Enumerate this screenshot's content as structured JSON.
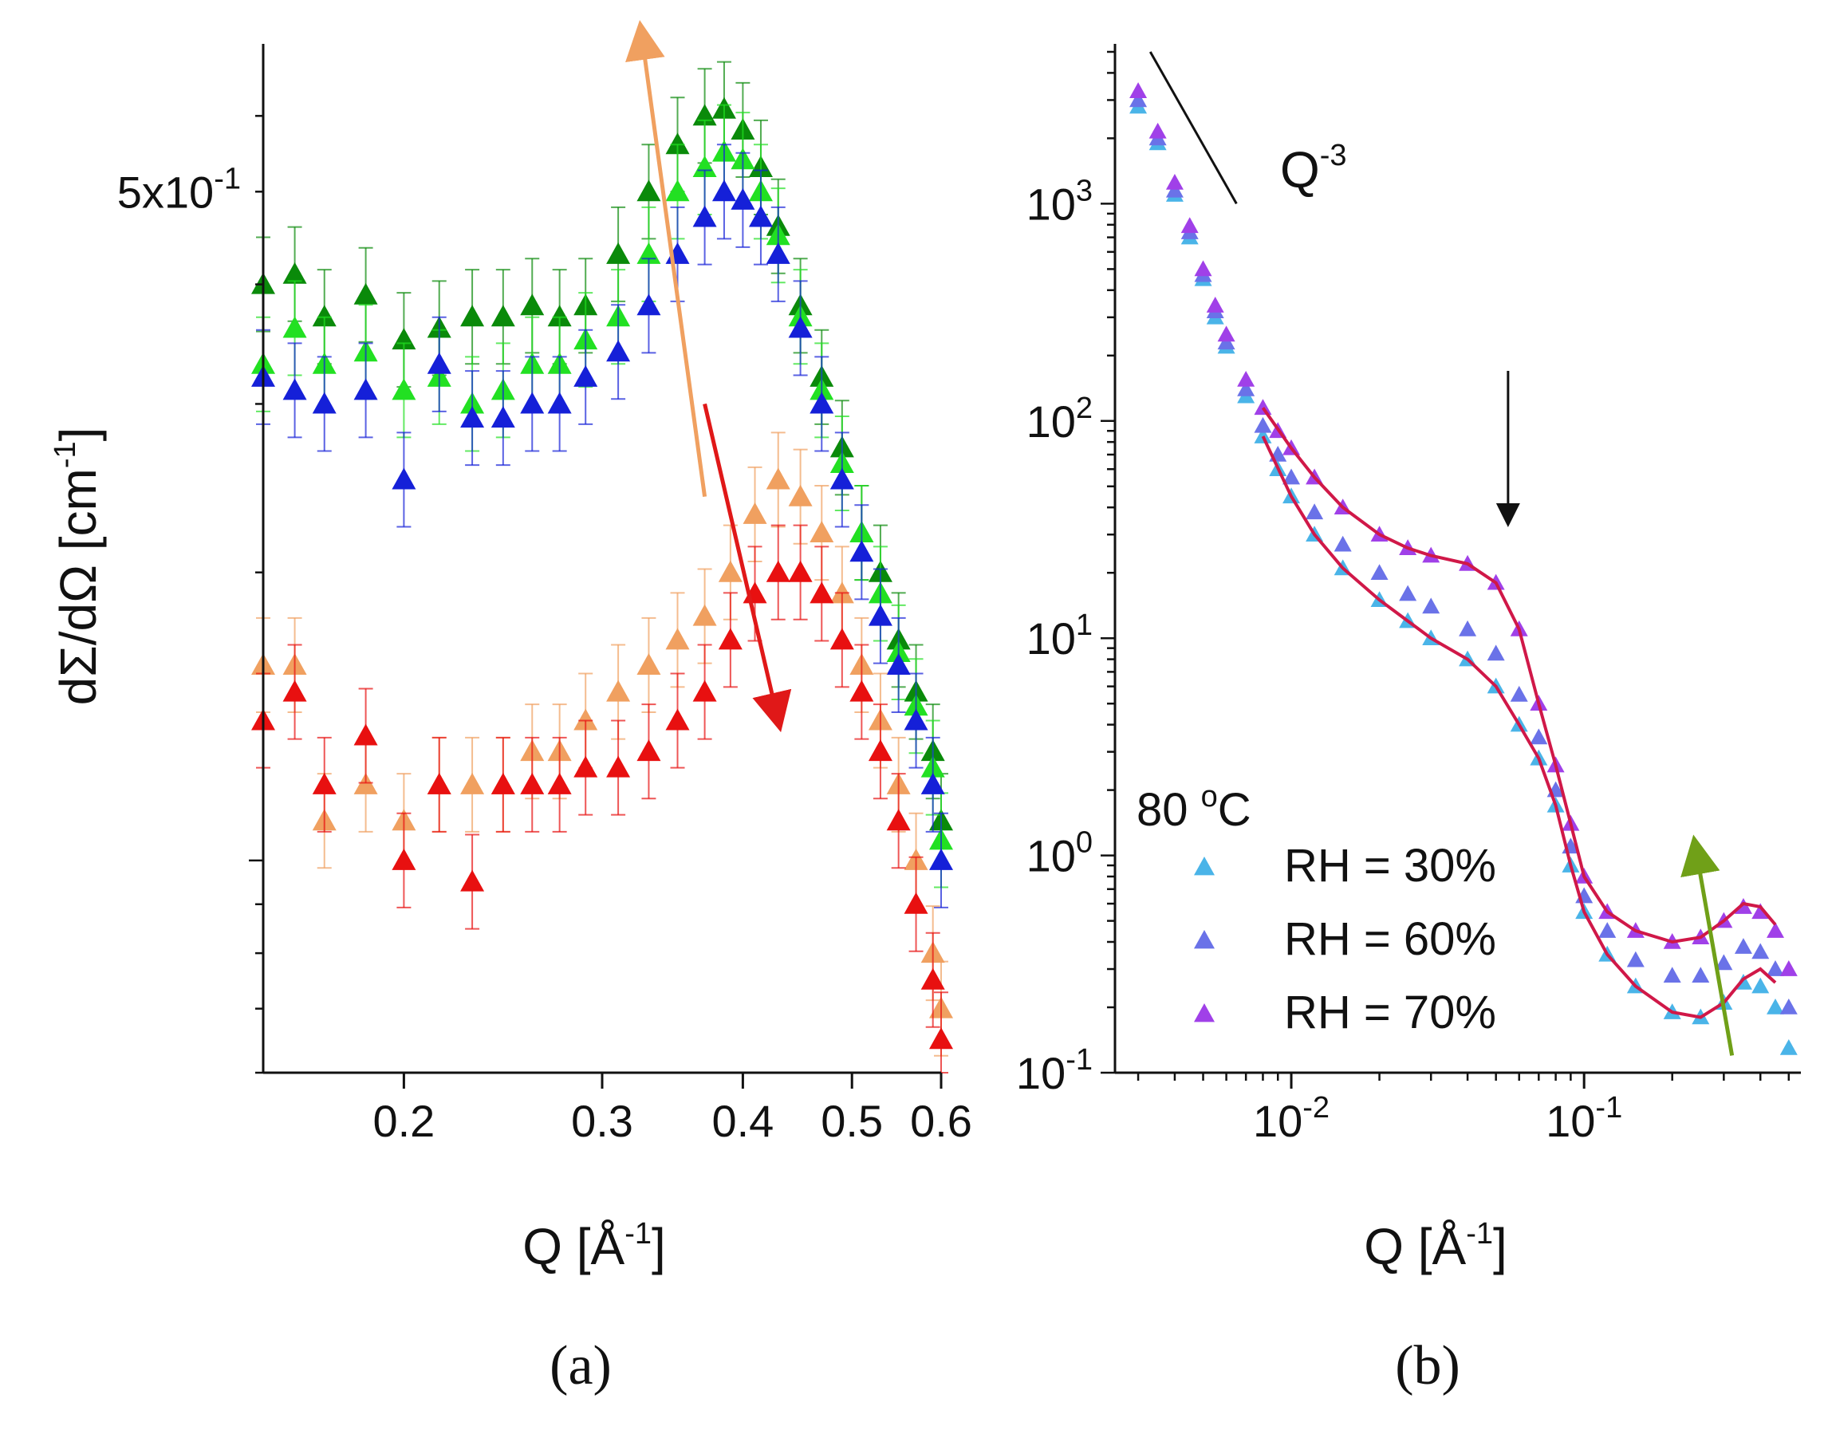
{
  "chart_data": [
    {
      "panel": "(a)",
      "type": "scatter",
      "xscale": "log",
      "yscale": "log",
      "xlim": [
        0.15,
        0.6
      ],
      "ylim": [
        0.06,
        0.7
      ],
      "xlabel": "Q [Å-1]",
      "xlabel_main": "Q [Å",
      "xlabel_sup": "-1",
      "xlabel_end": "]",
      "ylabel": "dΣ/dΩ [cm-1]",
      "ylabel_main": "dΣ/dΩ [cm",
      "ylabel_sup": "-1",
      "ylabel_end": "]",
      "xticks": [
        {
          "value": 0.2,
          "label": "0.2"
        },
        {
          "value": 0.3,
          "label": "0.3"
        },
        {
          "value": 0.4,
          "label": "0.4"
        },
        {
          "value": 0.5,
          "label": "0.5"
        },
        {
          "value": 0.6,
          "label": "0.6"
        }
      ],
      "yticks": [
        {
          "value": 0.5,
          "label_main": "5x10",
          "label_sup": "-1"
        }
      ],
      "series": [
        {
          "name": "dark green",
          "color": "#0a8a0a",
          "x": [
            0.15,
            0.16,
            0.17,
            0.185,
            0.2,
            0.215,
            0.23,
            0.245,
            0.26,
            0.275,
            0.29,
            0.31,
            0.33,
            0.35,
            0.37,
            0.385,
            0.4,
            0.415,
            0.43,
            0.45,
            0.47,
            0.49,
            0.51,
            0.53,
            0.55,
            0.57,
            0.59,
            0.6
          ],
          "y": [
            0.4,
            0.41,
            0.37,
            0.39,
            0.35,
            0.36,
            0.37,
            0.37,
            0.38,
            0.37,
            0.38,
            0.43,
            0.5,
            0.56,
            0.6,
            0.61,
            0.58,
            0.53,
            0.46,
            0.38,
            0.32,
            0.27,
            0.22,
            0.2,
            0.17,
            0.15,
            0.13,
            0.11
          ]
        },
        {
          "name": "light green",
          "color": "#22e022",
          "x": [
            0.15,
            0.16,
            0.17,
            0.185,
            0.2,
            0.215,
            0.23,
            0.245,
            0.26,
            0.275,
            0.29,
            0.31,
            0.33,
            0.35,
            0.37,
            0.385,
            0.4,
            0.415,
            0.43,
            0.45,
            0.47,
            0.49,
            0.51,
            0.53,
            0.55,
            0.57,
            0.59,
            0.6
          ],
          "y": [
            0.33,
            0.36,
            0.33,
            0.34,
            0.31,
            0.32,
            0.3,
            0.31,
            0.33,
            0.33,
            0.35,
            0.37,
            0.43,
            0.5,
            0.53,
            0.55,
            0.54,
            0.5,
            0.45,
            0.37,
            0.31,
            0.26,
            0.22,
            0.19,
            0.165,
            0.145,
            0.125,
            0.105
          ]
        },
        {
          "name": "blue",
          "color": "#1520d8",
          "x": [
            0.15,
            0.16,
            0.17,
            0.185,
            0.2,
            0.215,
            0.23,
            0.245,
            0.26,
            0.275,
            0.29,
            0.31,
            0.33,
            0.35,
            0.37,
            0.385,
            0.4,
            0.415,
            0.43,
            0.45,
            0.47,
            0.49,
            0.51,
            0.53,
            0.55,
            0.57,
            0.59,
            0.6
          ],
          "y": [
            0.32,
            0.31,
            0.3,
            0.31,
            0.25,
            0.33,
            0.29,
            0.29,
            0.3,
            0.3,
            0.32,
            0.34,
            0.38,
            0.43,
            0.47,
            0.5,
            0.49,
            0.47,
            0.43,
            0.36,
            0.3,
            0.25,
            0.21,
            0.18,
            0.16,
            0.14,
            0.12,
            0.1
          ]
        },
        {
          "name": "light orange",
          "color": "#f0a060",
          "x": [
            0.15,
            0.16,
            0.17,
            0.185,
            0.2,
            0.215,
            0.23,
            0.245,
            0.26,
            0.275,
            0.29,
            0.31,
            0.33,
            0.35,
            0.37,
            0.39,
            0.41,
            0.43,
            0.45,
            0.47,
            0.49,
            0.51,
            0.53,
            0.55,
            0.57,
            0.59,
            0.6
          ],
          "y": [
            0.16,
            0.16,
            0.11,
            0.12,
            0.11,
            0.12,
            0.12,
            0.12,
            0.13,
            0.13,
            0.14,
            0.15,
            0.16,
            0.17,
            0.18,
            0.2,
            0.23,
            0.25,
            0.24,
            0.22,
            0.19,
            0.16,
            0.14,
            0.12,
            0.1,
            0.08,
            0.07
          ]
        },
        {
          "name": "red",
          "color": "#e81010",
          "x": [
            0.15,
            0.16,
            0.17,
            0.185,
            0.2,
            0.215,
            0.23,
            0.245,
            0.26,
            0.275,
            0.29,
            0.31,
            0.33,
            0.35,
            0.37,
            0.39,
            0.41,
            0.43,
            0.45,
            0.47,
            0.49,
            0.51,
            0.53,
            0.55,
            0.57,
            0.59,
            0.6
          ],
          "y": [
            0.14,
            0.15,
            0.12,
            0.135,
            0.1,
            0.12,
            0.095,
            0.12,
            0.12,
            0.12,
            0.125,
            0.125,
            0.13,
            0.14,
            0.15,
            0.17,
            0.19,
            0.2,
            0.2,
            0.19,
            0.17,
            0.15,
            0.13,
            0.11,
            0.09,
            0.075,
            0.065
          ]
        }
      ],
      "annotations": [
        {
          "name": "orange-arrow",
          "color": "#f0a060",
          "from": [
            0.365,
            0.28
          ],
          "to": [
            0.33,
            0.78
          ]
        },
        {
          "name": "red-arrow",
          "color": "#e01818",
          "from": [
            0.37,
            0.3
          ],
          "to": [
            0.43,
            0.14
          ]
        }
      ]
    },
    {
      "panel": "(b)",
      "type": "scatter",
      "xscale": "log",
      "yscale": "log",
      "xlim": [
        0.0025,
        0.55
      ],
      "ylim": [
        0.1,
        5000
      ],
      "xlabel": "Q [Å-1]",
      "xlabel_main": "Q [Å",
      "xlabel_sup": "-1",
      "xlabel_end": "]",
      "xticks": [
        {
          "value": 0.01,
          "label_main": "10",
          "label_sup": "-2"
        },
        {
          "value": 0.1,
          "label_main": "10",
          "label_sup": "-1"
        }
      ],
      "yticks": [
        {
          "value": 0.1,
          "label_main": "10",
          "label_sup": "-1"
        },
        {
          "value": 1,
          "label_main": "10",
          "label_sup": "0"
        },
        {
          "value": 10,
          "label_main": "10",
          "label_sup": "1"
        },
        {
          "value": 100,
          "label_main": "10",
          "label_sup": "2"
        },
        {
          "value": 1000,
          "label_main": "10",
          "label_sup": "3"
        }
      ],
      "legend_title_main": "80 ",
      "legend_title_sup": "o",
      "legend_title_end": "C",
      "slope_label_main": "Q",
      "slope_label_sup": "-3",
      "series": [
        {
          "name": "RH = 30%",
          "color": "#4ab4e8",
          "x": [
            0.003,
            0.0035,
            0.004,
            0.0045,
            0.005,
            0.0055,
            0.006,
            0.007,
            0.008,
            0.009,
            0.01,
            0.012,
            0.015,
            0.02,
            0.025,
            0.03,
            0.04,
            0.05,
            0.06,
            0.07,
            0.08,
            0.09,
            0.1,
            0.12,
            0.15,
            0.2,
            0.25,
            0.3,
            0.35,
            0.4,
            0.45,
            0.5
          ],
          "y": [
            2800,
            1900,
            1100,
            700,
            450,
            300,
            220,
            130,
            85,
            60,
            45,
            30,
            21,
            15,
            12,
            10,
            8,
            6,
            4,
            2.8,
            1.7,
            0.9,
            0.55,
            0.35,
            0.25,
            0.19,
            0.18,
            0.21,
            0.26,
            0.25,
            0.2,
            0.13
          ]
        },
        {
          "name": "RH = 60%",
          "color": "#6a72e8",
          "x": [
            0.003,
            0.0035,
            0.004,
            0.0045,
            0.005,
            0.0055,
            0.006,
            0.007,
            0.008,
            0.009,
            0.01,
            0.012,
            0.015,
            0.02,
            0.025,
            0.03,
            0.04,
            0.05,
            0.06,
            0.07,
            0.08,
            0.09,
            0.1,
            0.12,
            0.15,
            0.2,
            0.25,
            0.3,
            0.35,
            0.4,
            0.45,
            0.5
          ],
          "y": [
            3000,
            2000,
            1150,
            740,
            470,
            320,
            230,
            140,
            95,
            70,
            55,
            38,
            27,
            20,
            16,
            14,
            11,
            8.5,
            5.5,
            3.5,
            2,
            1.1,
            0.65,
            0.45,
            0.33,
            0.28,
            0.28,
            0.32,
            0.38,
            0.36,
            0.3,
            0.2
          ]
        },
        {
          "name": "RH = 70%",
          "color": "#a040e8",
          "x": [
            0.003,
            0.0035,
            0.004,
            0.0045,
            0.005,
            0.0055,
            0.006,
            0.007,
            0.008,
            0.009,
            0.01,
            0.012,
            0.015,
            0.02,
            0.025,
            0.03,
            0.04,
            0.05,
            0.06,
            0.07,
            0.08,
            0.09,
            0.1,
            0.12,
            0.15,
            0.2,
            0.25,
            0.3,
            0.35,
            0.4,
            0.45,
            0.5
          ],
          "y": [
            3300,
            2150,
            1250,
            790,
            500,
            340,
            250,
            155,
            115,
            90,
            75,
            55,
            40,
            30,
            26,
            24,
            22,
            18,
            11,
            5,
            2.6,
            1.4,
            0.8,
            0.55,
            0.45,
            0.4,
            0.42,
            0.5,
            0.58,
            0.55,
            0.45,
            0.3
          ]
        }
      ],
      "fits": [
        {
          "name": "fit-30",
          "color": "#d01848",
          "x": [
            0.008,
            0.01,
            0.012,
            0.015,
            0.02,
            0.025,
            0.03,
            0.04,
            0.05,
            0.06,
            0.07,
            0.08,
            0.09,
            0.1,
            0.12,
            0.15,
            0.2,
            0.25,
            0.3,
            0.35,
            0.4,
            0.45
          ],
          "y": [
            85,
            45,
            30,
            21,
            15,
            12,
            10,
            8,
            6,
            4,
            2.8,
            1.7,
            0.9,
            0.55,
            0.35,
            0.25,
            0.19,
            0.18,
            0.21,
            0.27,
            0.3,
            0.26
          ]
        },
        {
          "name": "fit-70",
          "color": "#d01848",
          "x": [
            0.008,
            0.01,
            0.012,
            0.015,
            0.02,
            0.025,
            0.03,
            0.04,
            0.05,
            0.06,
            0.07,
            0.08,
            0.09,
            0.1,
            0.12,
            0.15,
            0.2,
            0.25,
            0.3,
            0.35,
            0.4,
            0.45
          ],
          "y": [
            115,
            75,
            55,
            40,
            30,
            26,
            24,
            22,
            18,
            11,
            5,
            2.6,
            1.4,
            0.8,
            0.55,
            0.45,
            0.4,
            0.42,
            0.5,
            0.6,
            0.58,
            0.48
          ]
        }
      ],
      "annotations": [
        {
          "name": "slope-line",
          "color": "#111111",
          "from": [
            0.0033,
            5000
          ],
          "to": [
            0.0065,
            1000
          ]
        },
        {
          "name": "black-arrow",
          "color": "#111111",
          "from": [
            0.055,
            170
          ],
          "to": [
            0.055,
            35
          ]
        },
        {
          "name": "green-arrow",
          "color": "#70a018",
          "from": [
            0.32,
            0.12
          ],
          "to": [
            0.24,
            1.1
          ]
        }
      ]
    }
  ],
  "labels": {
    "panel_a": "(a)",
    "panel_b": "(b)"
  }
}
